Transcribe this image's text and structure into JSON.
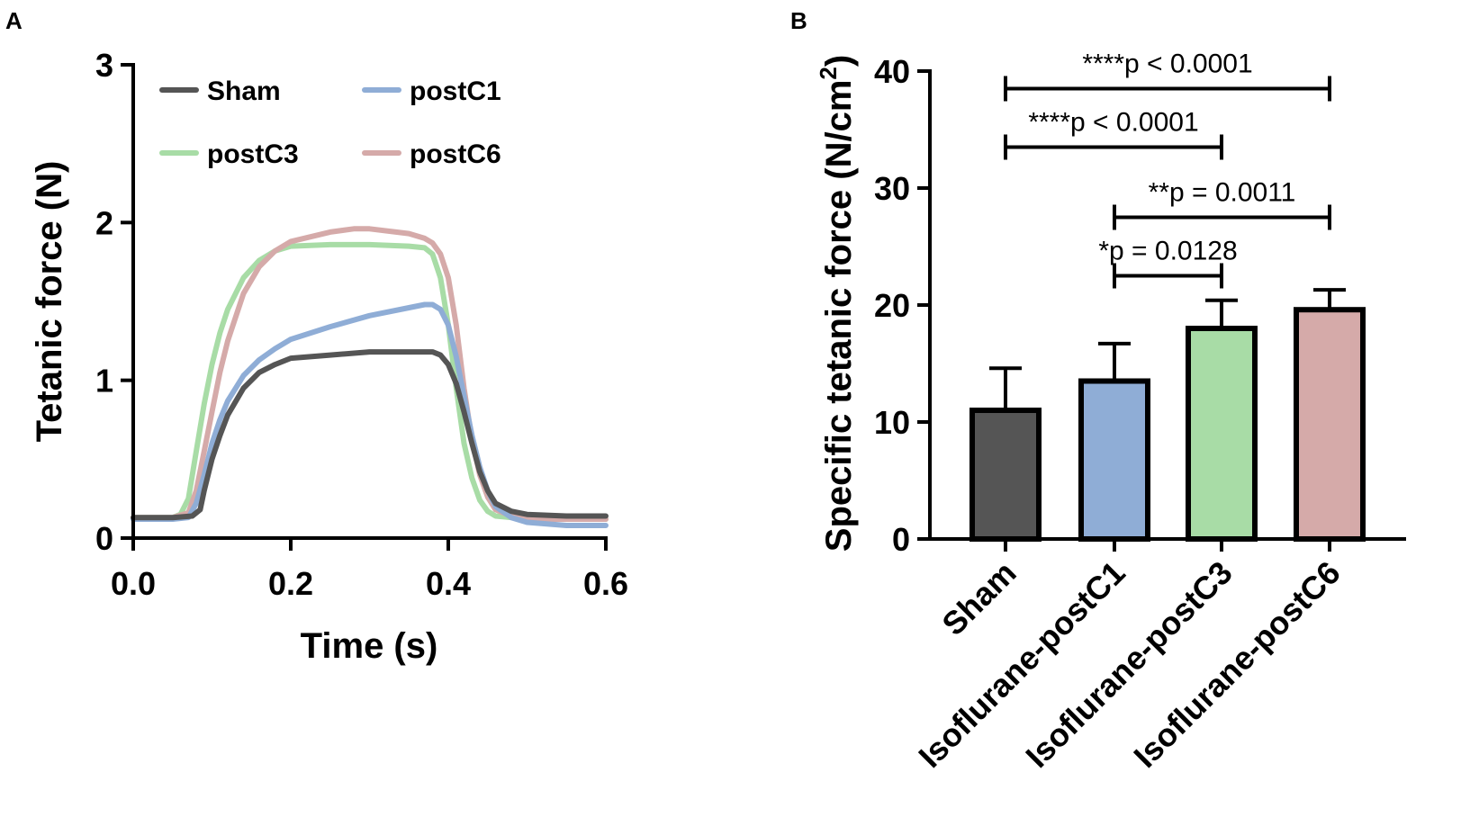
{
  "colors": {
    "sham": "#555555",
    "postC1": "#8fadd6",
    "postC3": "#a8dca6",
    "postC6": "#d5aaa9",
    "axis": "#000000"
  },
  "chart_data": [
    {
      "panel": "A",
      "type": "line",
      "xlabel": "Time (s)",
      "ylabel": "Tetanic force (N)",
      "xlim": [
        0,
        0.6
      ],
      "ylim": [
        0,
        3
      ],
      "xticks": [
        "0.0",
        "0.2",
        "0.4",
        "0.6"
      ],
      "yticks": [
        "0",
        "1",
        "2",
        "3"
      ],
      "legend_position": "top-left",
      "series": [
        {
          "name": "Sham",
          "color_key": "sham",
          "x": [
            0,
            0.05,
            0.075,
            0.085,
            0.09,
            0.1,
            0.11,
            0.12,
            0.14,
            0.16,
            0.18,
            0.2,
            0.25,
            0.3,
            0.35,
            0.38,
            0.39,
            0.4,
            0.41,
            0.42,
            0.43,
            0.44,
            0.45,
            0.46,
            0.48,
            0.5,
            0.55,
            0.6
          ],
          "y": [
            0.13,
            0.13,
            0.14,
            0.18,
            0.3,
            0.5,
            0.65,
            0.78,
            0.95,
            1.05,
            1.1,
            1.14,
            1.16,
            1.18,
            1.18,
            1.18,
            1.16,
            1.1,
            0.98,
            0.8,
            0.6,
            0.42,
            0.3,
            0.22,
            0.17,
            0.15,
            0.14,
            0.14
          ]
        },
        {
          "name": "postC1",
          "color_key": "postC1",
          "x": [
            0,
            0.05,
            0.07,
            0.08,
            0.09,
            0.1,
            0.11,
            0.12,
            0.14,
            0.16,
            0.18,
            0.2,
            0.25,
            0.3,
            0.35,
            0.37,
            0.38,
            0.39,
            0.4,
            0.41,
            0.42,
            0.43,
            0.44,
            0.45,
            0.46,
            0.48,
            0.5,
            0.55,
            0.6
          ],
          "y": [
            0.12,
            0.12,
            0.13,
            0.22,
            0.4,
            0.6,
            0.75,
            0.87,
            1.03,
            1.13,
            1.2,
            1.26,
            1.34,
            1.41,
            1.46,
            1.48,
            1.48,
            1.45,
            1.35,
            1.15,
            0.9,
            0.65,
            0.45,
            0.3,
            0.2,
            0.13,
            0.1,
            0.08,
            0.08
          ]
        },
        {
          "name": "postC3",
          "color_key": "postC3",
          "x": [
            0,
            0.05,
            0.06,
            0.07,
            0.08,
            0.09,
            0.1,
            0.11,
            0.12,
            0.14,
            0.16,
            0.18,
            0.2,
            0.25,
            0.3,
            0.35,
            0.37,
            0.38,
            0.39,
            0.4,
            0.41,
            0.42,
            0.43,
            0.44,
            0.45,
            0.46,
            0.48,
            0.5,
            0.55,
            0.6
          ],
          "y": [
            0.13,
            0.13,
            0.15,
            0.25,
            0.55,
            0.85,
            1.1,
            1.3,
            1.45,
            1.65,
            1.76,
            1.82,
            1.85,
            1.86,
            1.86,
            1.85,
            1.84,
            1.8,
            1.65,
            1.35,
            0.95,
            0.6,
            0.38,
            0.24,
            0.17,
            0.14,
            0.13,
            0.12,
            0.12,
            0.12
          ]
        },
        {
          "name": "postC6",
          "color_key": "postC6",
          "x": [
            0,
            0.05,
            0.07,
            0.08,
            0.09,
            0.1,
            0.11,
            0.12,
            0.14,
            0.16,
            0.18,
            0.2,
            0.25,
            0.28,
            0.3,
            0.35,
            0.37,
            0.38,
            0.39,
            0.4,
            0.41,
            0.42,
            0.43,
            0.44,
            0.45,
            0.46,
            0.48,
            0.5,
            0.55,
            0.6
          ],
          "y": [
            0.13,
            0.13,
            0.16,
            0.3,
            0.55,
            0.8,
            1.05,
            1.25,
            1.55,
            1.72,
            1.82,
            1.88,
            1.94,
            1.96,
            1.96,
            1.93,
            1.9,
            1.87,
            1.8,
            1.65,
            1.35,
            0.95,
            0.62,
            0.4,
            0.26,
            0.18,
            0.14,
            0.12,
            0.12,
            0.12
          ]
        }
      ]
    },
    {
      "panel": "B",
      "type": "bar",
      "xlabel": "",
      "ylabel_main": "Specific tetanic force (N/cm",
      "ylabel_sup": "2",
      "ylabel_close": ")",
      "ylim": [
        0,
        40
      ],
      "yticks": [
        "0",
        "10",
        "20",
        "30",
        "40"
      ],
      "categories": [
        "Sham",
        "Isoflurane-postC1",
        "Isoflurane-postC3",
        "Isoflurane-postC6"
      ],
      "color_keys": [
        "sham",
        "postC1",
        "postC3",
        "postC6"
      ],
      "values": [
        11.0,
        13.5,
        18.0,
        19.6
      ],
      "errors": [
        3.6,
        3.2,
        2.4,
        1.7
      ],
      "significance": [
        {
          "from": 0,
          "to": 3,
          "y": 38.5,
          "label": "****p < 0.0001"
        },
        {
          "from": 0,
          "to": 2,
          "y": 33.5,
          "label": "****p < 0.0001"
        },
        {
          "from": 1,
          "to": 3,
          "y": 27.5,
          "label": "**p = 0.0011"
        },
        {
          "from": 1,
          "to": 2,
          "y": 22.5,
          "label": "*p = 0.0128"
        }
      ]
    }
  ]
}
